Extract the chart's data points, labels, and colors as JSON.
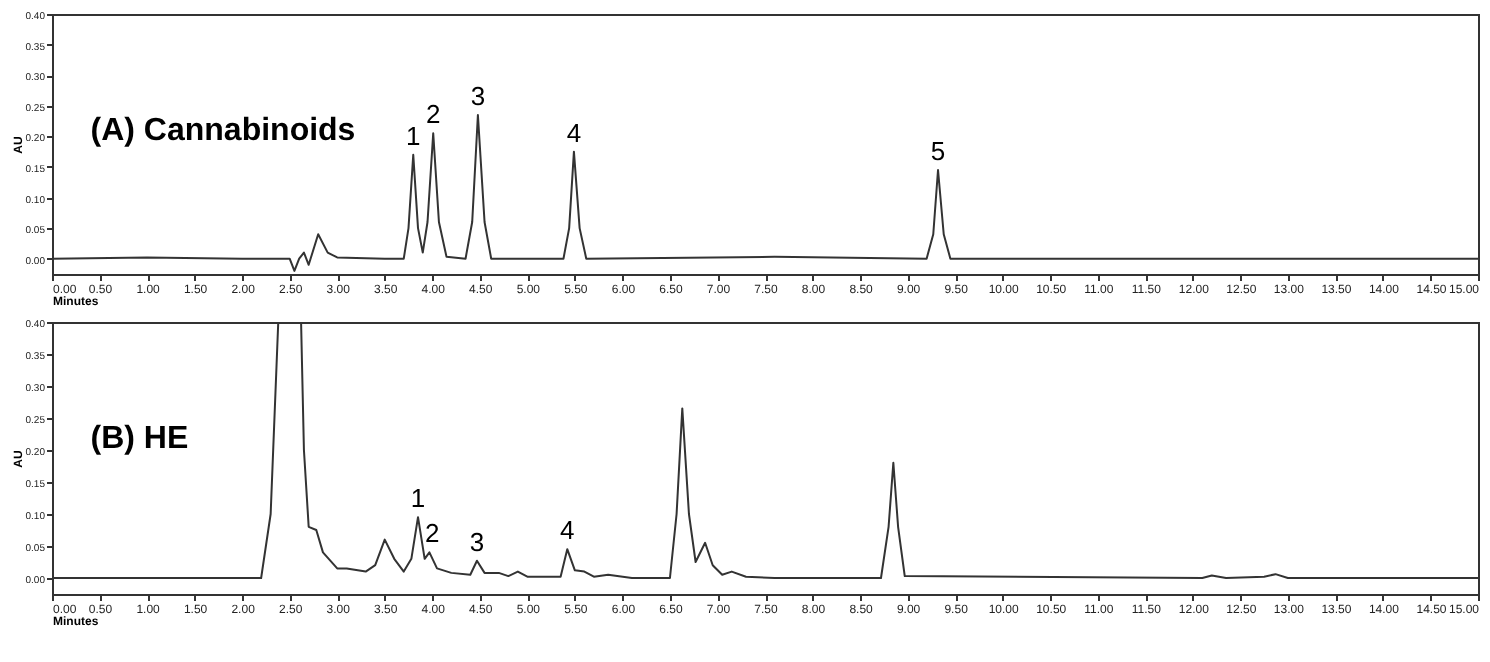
{
  "chart_data": [
    {
      "type": "line",
      "title": "(A) Cannabinoids",
      "xlabel": "Minutes",
      "ylabel": "AU",
      "xlim": [
        0,
        15
      ],
      "ylim": [
        -0.025,
        0.4
      ],
      "xticks": [
        {
          "value": 0,
          "label": "0.00"
        },
        {
          "value": 0.5,
          "label": "0.50"
        },
        {
          "value": 1,
          "label": "1.00"
        },
        {
          "value": 1.5,
          "label": "1.50"
        },
        {
          "value": 2,
          "label": "2.00"
        },
        {
          "value": 2.5,
          "label": "2.50"
        },
        {
          "value": 3,
          "label": "3.00"
        },
        {
          "value": 3.5,
          "label": "3.50"
        },
        {
          "value": 4,
          "label": "4.00"
        },
        {
          "value": 4.5,
          "label": "4.50"
        },
        {
          "value": 5,
          "label": "5.00"
        },
        {
          "value": 5.5,
          "label": "5.50"
        },
        {
          "value": 6,
          "label": "6.00"
        },
        {
          "value": 6.5,
          "label": "6.50"
        },
        {
          "value": 7,
          "label": "7.00"
        },
        {
          "value": 7.5,
          "label": "7.50"
        },
        {
          "value": 8,
          "label": "8.00"
        },
        {
          "value": 8.5,
          "label": "8.50"
        },
        {
          "value": 9,
          "label": "9.00"
        },
        {
          "value": 9.5,
          "label": "9.50"
        },
        {
          "value": 10,
          "label": "10.00"
        },
        {
          "value": 10.5,
          "label": "10.50"
        },
        {
          "value": 11,
          "label": "11.00"
        },
        {
          "value": 11.5,
          "label": "11.50"
        },
        {
          "value": 12,
          "label": "12.00"
        },
        {
          "value": 12.5,
          "label": "12.50"
        },
        {
          "value": 13,
          "label": "13.00"
        },
        {
          "value": 13.5,
          "label": "13.50"
        },
        {
          "value": 14,
          "label": "14.00"
        },
        {
          "value": 14.5,
          "label": "14.50"
        },
        {
          "value": 15,
          "label": "15.00"
        }
      ],
      "yticks": [
        {
          "value": 0,
          "label": "0.00"
        },
        {
          "value": 0.05,
          "label": "0.05"
        },
        {
          "value": 0.1,
          "label": "0.10"
        },
        {
          "value": 0.15,
          "label": "0.15"
        },
        {
          "value": 0.2,
          "label": "0.20"
        },
        {
          "value": 0.25,
          "label": "0.25"
        },
        {
          "value": 0.3,
          "label": "0.30"
        },
        {
          "value": 0.35,
          "label": "0.35"
        },
        {
          "value": 0.4,
          "label": "0.40"
        }
      ],
      "series": [
        {
          "color": "#333333",
          "x": [
            0,
            1.0,
            2.0,
            2.5,
            2.55,
            2.6,
            2.65,
            2.7,
            2.8,
            2.9,
            3.0,
            3.5,
            3.7,
            3.75,
            3.8,
            3.85,
            3.9,
            3.95,
            4.01,
            4.07,
            4.15,
            4.35,
            4.42,
            4.48,
            4.55,
            4.62,
            5.38,
            5.44,
            5.49,
            5.55,
            5.62,
            7.6,
            9.2,
            9.27,
            9.32,
            9.38,
            9.45,
            15
          ],
          "values": [
            0,
            0.002,
            0,
            0,
            -0.02,
            0,
            0.01,
            -0.01,
            0.04,
            0.01,
            0.002,
            0,
            0,
            0.05,
            0.17,
            0.05,
            0.01,
            0.06,
            0.205,
            0.06,
            0.003,
            0,
            0.06,
            0.235,
            0.06,
            0,
            0,
            0.05,
            0.175,
            0.05,
            0,
            0.003,
            0,
            0.04,
            0.145,
            0.04,
            0,
            0
          ]
        }
      ],
      "annotations": [
        {
          "text": "1",
          "x": 3.8,
          "y": 0.17
        },
        {
          "text": "2",
          "x": 4.01,
          "y": 0.205
        },
        {
          "text": "3",
          "x": 4.48,
          "y": 0.235
        },
        {
          "text": "4",
          "x": 5.49,
          "y": 0.175
        },
        {
          "text": "5",
          "x": 9.32,
          "y": 0.145
        }
      ]
    },
    {
      "type": "line",
      "title": "(B) HE",
      "xlabel": "Minutes",
      "ylabel": "AU",
      "xlim": [
        0,
        15
      ],
      "ylim": [
        -0.025,
        0.4
      ],
      "xticks": [
        {
          "value": 0,
          "label": "0.00"
        },
        {
          "value": 0.5,
          "label": "0.50"
        },
        {
          "value": 1,
          "label": "1.00"
        },
        {
          "value": 1.5,
          "label": "1.50"
        },
        {
          "value": 2,
          "label": "2.00"
        },
        {
          "value": 2.5,
          "label": "2.50"
        },
        {
          "value": 3,
          "label": "3.00"
        },
        {
          "value": 3.5,
          "label": "3.50"
        },
        {
          "value": 4,
          "label": "4.00"
        },
        {
          "value": 4.5,
          "label": "4.50"
        },
        {
          "value": 5,
          "label": "5.00"
        },
        {
          "value": 5.5,
          "label": "5.50"
        },
        {
          "value": 6,
          "label": "6.00"
        },
        {
          "value": 6.5,
          "label": "6.50"
        },
        {
          "value": 7,
          "label": "7.00"
        },
        {
          "value": 7.5,
          "label": "7.50"
        },
        {
          "value": 8,
          "label": "8.00"
        },
        {
          "value": 8.5,
          "label": "8.50"
        },
        {
          "value": 9,
          "label": "9.00"
        },
        {
          "value": 9.5,
          "label": "9.50"
        },
        {
          "value": 10,
          "label": "10.00"
        },
        {
          "value": 10.5,
          "label": "10.50"
        },
        {
          "value": 11,
          "label": "11.00"
        },
        {
          "value": 11.5,
          "label": "11.50"
        },
        {
          "value": 12,
          "label": "12.00"
        },
        {
          "value": 12.5,
          "label": "12.50"
        },
        {
          "value": 13,
          "label": "13.00"
        },
        {
          "value": 13.5,
          "label": "13.50"
        },
        {
          "value": 14,
          "label": "14.00"
        },
        {
          "value": 14.5,
          "label": "14.50"
        },
        {
          "value": 15,
          "label": "15.00"
        }
      ],
      "yticks": [
        {
          "value": 0,
          "label": "0.00"
        },
        {
          "value": 0.05,
          "label": "0.05"
        },
        {
          "value": 0.1,
          "label": "0.10"
        },
        {
          "value": 0.15,
          "label": "0.15"
        },
        {
          "value": 0.2,
          "label": "0.20"
        },
        {
          "value": 0.25,
          "label": "0.25"
        },
        {
          "value": 0.3,
          "label": "0.30"
        },
        {
          "value": 0.35,
          "label": "0.35"
        },
        {
          "value": 0.4,
          "label": "0.40"
        }
      ],
      "series": [
        {
          "color": "#333333",
          "x": [
            0,
            2.2,
            2.3,
            2.38,
            2.62,
            2.65,
            2.7,
            2.78,
            2.85,
            3.0,
            3.1,
            3.3,
            3.4,
            3.5,
            3.6,
            3.7,
            3.78,
            3.85,
            3.92,
            3.97,
            4.05,
            4.2,
            4.4,
            4.47,
            4.55,
            4.7,
            4.8,
            4.9,
            5.0,
            5.35,
            5.42,
            5.5,
            5.6,
            5.7,
            5.85,
            6.1,
            6.5,
            6.57,
            6.63,
            6.7,
            6.77,
            6.87,
            6.95,
            7.05,
            7.15,
            7.3,
            7.6,
            8.72,
            8.8,
            8.85,
            8.9,
            8.97,
            12.1,
            12.2,
            12.35,
            12.75,
            12.87,
            13.0,
            15
          ],
          "values": [
            0,
            0,
            0.1,
            0.4,
            0.4,
            0.2,
            0.08,
            0.075,
            0.04,
            0.015,
            0.015,
            0.01,
            0.02,
            0.06,
            0.03,
            0.01,
            0.03,
            0.095,
            0.03,
            0.04,
            0.015,
            0.008,
            0.005,
            0.027,
            0.008,
            0.008,
            0.003,
            0.01,
            0.002,
            0.002,
            0.045,
            0.012,
            0.01,
            0.002,
            0.005,
            0,
            0,
            0.1,
            0.265,
            0.1,
            0.025,
            0.055,
            0.02,
            0.005,
            0.01,
            0.002,
            0,
            0,
            0.08,
            0.18,
            0.08,
            0.003,
            0,
            0.004,
            0,
            0.002,
            0.006,
            0,
            0
          ]
        }
      ],
      "annotations": [
        {
          "text": "1",
          "x": 3.85,
          "y": 0.095
        },
        {
          "text": "2",
          "x": 4.0,
          "y": 0.04
        },
        {
          "text": "3",
          "x": 4.47,
          "y": 0.027
        },
        {
          "text": "4",
          "x": 5.42,
          "y": 0.045
        }
      ]
    }
  ]
}
